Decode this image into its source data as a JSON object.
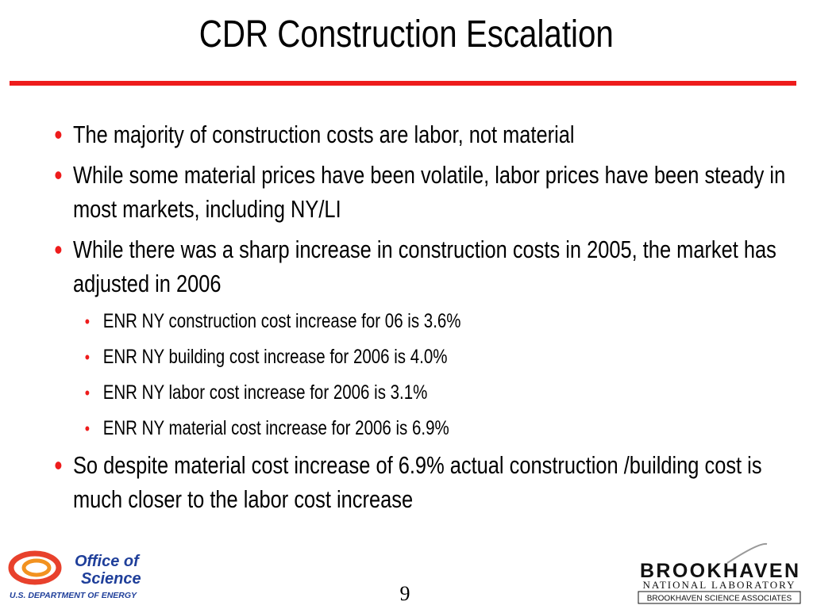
{
  "title": "CDR Construction Escalation",
  "bullets": [
    {
      "text": "The majority of construction costs are labor, not material",
      "sub_bullets": []
    },
    {
      "text": "While some material prices have been volatile, labor prices have been steady in most markets, including NY/LI",
      "sub_bullets": []
    },
    {
      "text": "While there was a sharp increase in construction costs in 2005, the market has adjusted in 2006",
      "sub_bullets": [
        "ENR NY construction cost increase for 06 is 3.6%",
        "ENR NY building cost increase for 2006 is 4.0%",
        "ENR NY labor cost increase for 2006 is 3.1%",
        "ENR NY material cost increase for 2006 is 6.9%"
      ]
    },
    {
      "text": "So despite material cost increase of 6.9% actual construction /building cost is much closer to the labor cost increase",
      "sub_bullets": []
    }
  ],
  "footer": {
    "doe_logo": {
      "line1": "Office of",
      "line2": "Science",
      "line3": "U.S. DEPARTMENT OF ENERGY"
    },
    "bnl_logo": {
      "name": "BROOKHAVEN",
      "subtitle": "NATIONAL LABORATORY",
      "associates": "BROOKHAVEN SCIENCE ASSOCIATES"
    },
    "page_number": "9"
  }
}
